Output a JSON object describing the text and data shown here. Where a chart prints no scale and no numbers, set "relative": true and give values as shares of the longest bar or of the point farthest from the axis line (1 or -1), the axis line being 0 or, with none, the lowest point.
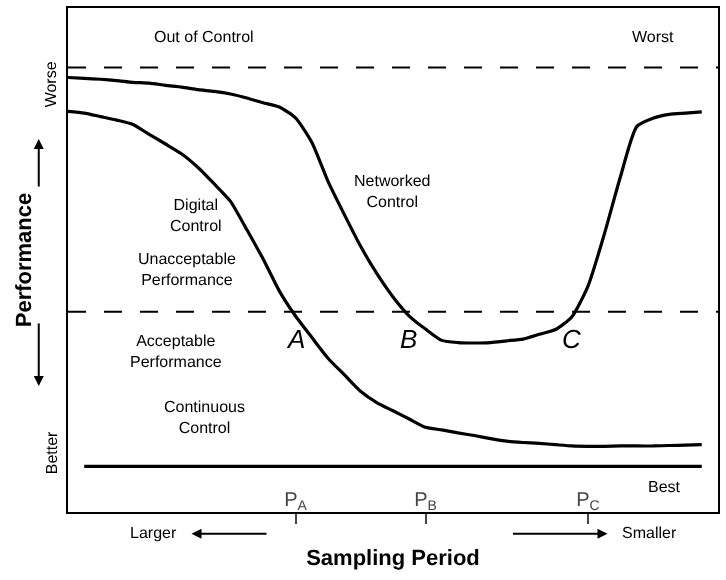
{
  "chart_data": {
    "type": "line",
    "relative": true,
    "xlabel": "Sampling Period",
    "ylabel": "Performance",
    "categories": [
      null,
      null,
      null,
      null,
      null,
      null,
      null,
      null,
      null,
      null,
      null,
      null,
      null,
      null,
      "P$_{A}$",
      null,
      null,
      null,
      null,
      null,
      null,
      null,
      "P$_{B}$",
      null,
      null,
      null,
      null,
      null,
      null,
      null,
      null,
      null,
      "P$_{C}$",
      null,
      null,
      null,
      null,
      null,
      null,
      null,
      null
    ],
    "series": [
      {
        "name": "Networked Control",
        "color": "#000000",
        "values": [
          1.0,
          0.998,
          0.996,
          0.993,
          0.989,
          0.987,
          0.982,
          0.978,
          0.972,
          0.968,
          0.962,
          0.953,
          0.942,
          0.932,
          0.907,
          0.851,
          0.761,
          0.685,
          0.612,
          0.549,
          0.495,
          0.451,
          0.421,
          0.395,
          0.39,
          0.389,
          0.39,
          0.394,
          0.398,
          0.409,
          0.42,
          0.449,
          0.52,
          0.639,
          0.772,
          0.887,
          0.906,
          0.915,
          0.918,
          0.921,
          null
        ]
      },
      {
        "name": "Digital Control",
        "color": "#000000",
        "values": [
          0.922,
          0.918,
          0.91,
          0.902,
          0.892,
          0.869,
          0.847,
          0.824,
          0.793,
          0.755,
          0.715,
          0.65,
          0.583,
          0.509,
          0.451,
          0.402,
          0.354,
          0.316,
          0.278,
          0.252,
          0.233,
          0.214,
          0.195,
          0.189,
          0.182,
          0.176,
          0.169,
          0.163,
          0.16,
          0.158,
          0.155,
          0.152,
          0.151,
          0.151,
          0.152,
          0.152,
          0.152,
          0.153,
          0.154,
          0.155,
          null
        ]
      },
      {
        "name": "Continuous Control",
        "color": "#000000",
        "values": [
          null,
          0.105,
          0.105,
          0.105,
          0.105,
          0.105,
          0.105,
          0.105,
          0.105,
          0.105,
          0.105,
          0.105,
          0.105,
          0.105,
          0.105,
          0.105,
          0.105,
          0.105,
          0.105,
          0.105,
          0.105,
          0.105,
          0.105,
          0.105,
          0.105,
          0.105,
          0.105,
          0.105,
          0.105,
          0.105,
          0.105,
          0.105,
          0.105,
          0.105,
          0.105,
          0.105,
          0.105,
          0.105,
          0.105,
          0.105,
          null
        ]
      }
    ],
    "ref_lines": [
      {
        "axis": "y",
        "value": 1.023,
        "label": "Out of Control",
        "line_style": "dashed",
        "color": "#000000"
      },
      {
        "axis": "y",
        "value": 0.461,
        "label": null,
        "line_style": "dashed",
        "color": "#000000"
      }
    ],
    "annotations": [
      "Worst",
      "Unacceptable\nPerformance",
      "Acceptable\nPerformance",
      "Best",
      "Larger",
      "Smaller",
      "Worse",
      "Better",
      "A",
      "B",
      "C"
    ],
    "legend": false,
    "marker": "none",
    "line_style": "solid"
  }
}
